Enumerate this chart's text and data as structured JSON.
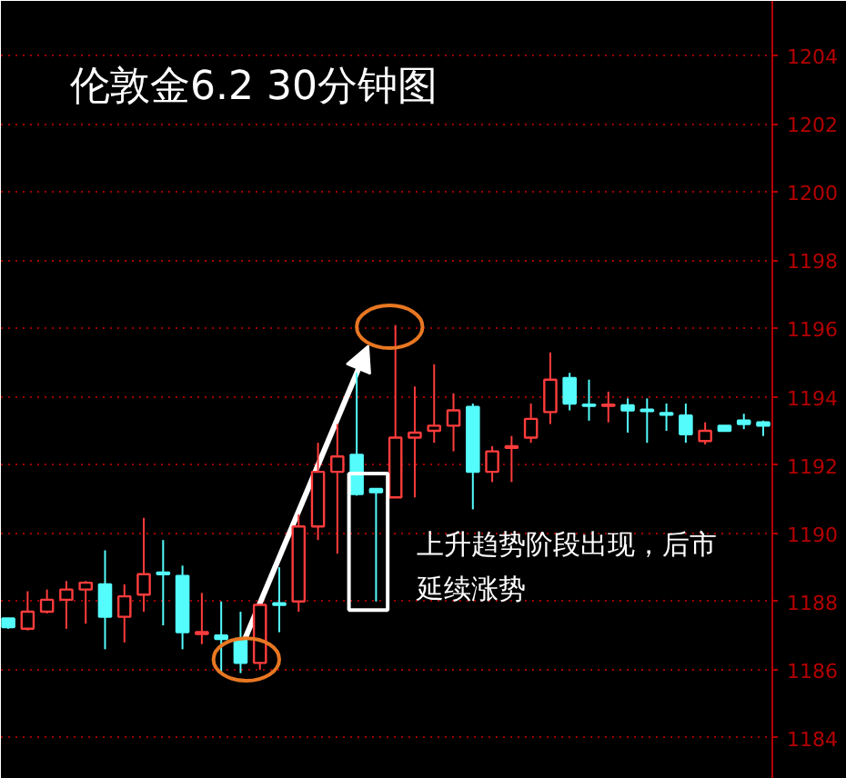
{
  "chart_data": {
    "type": "candlestick",
    "title": "伦敦金6.2 30分钟图",
    "categories": [
      null,
      null,
      null,
      null,
      null,
      null,
      null,
      null,
      null,
      null,
      null,
      null,
      null,
      null,
      null,
      null,
      null,
      null,
      null,
      null,
      null,
      null,
      null,
      null,
      null,
      null,
      null,
      null,
      null,
      null,
      null,
      null,
      null,
      null,
      null,
      null,
      null,
      null,
      null,
      null
    ],
    "ohlc": [
      [
        1187.5,
        1187.5,
        1187.2,
        1187.25
      ],
      [
        1187.2,
        1188.3,
        1187.15,
        1187.7
      ],
      [
        1187.7,
        1188.35,
        1187.65,
        1188.05
      ],
      [
        1188.05,
        1188.6,
        1187.2,
        1188.35
      ],
      [
        1188.35,
        1188.6,
        1187.35,
        1188.55
      ],
      [
        1188.5,
        1189.5,
        1186.6,
        1187.55
      ],
      [
        1187.55,
        1188.5,
        1186.8,
        1188.15
      ],
      [
        1188.2,
        1190.45,
        1187.7,
        1188.8
      ],
      [
        1188.85,
        1189.8,
        1187.3,
        1188.8
      ],
      [
        1188.75,
        1189.05,
        1186.6,
        1187.1
      ],
      [
        1187.05,
        1188.25,
        1186.75,
        1187.1
      ],
      [
        1187.0,
        1188.0,
        1185.9,
        1186.9
      ],
      [
        1186.9,
        1187.7,
        1185.9,
        1186.2
      ],
      [
        1186.2,
        1187.9,
        1186.0,
        1187.9
      ],
      [
        1187.95,
        1189.0,
        1187.1,
        1187.9
      ],
      [
        1188.0,
        1190.55,
        1187.7,
        1190.2
      ],
      [
        1190.2,
        1192.65,
        1189.8,
        1191.8
      ],
      [
        1191.8,
        1193.2,
        1189.4,
        1192.25
      ],
      [
        1192.3,
        1194.7,
        1191.1,
        1191.15
      ],
      [
        1191.3,
        1191.3,
        1188.0,
        1191.2
      ],
      [
        1191.05,
        1196.1,
        1191.05,
        1192.8
      ],
      [
        1192.8,
        1194.3,
        1191.05,
        1192.95
      ],
      [
        1193.0,
        1194.95,
        1192.65,
        1193.15
      ],
      [
        1193.15,
        1194.1,
        1192.4,
        1193.6
      ],
      [
        1193.7,
        1193.8,
        1190.7,
        1191.8
      ],
      [
        1191.8,
        1192.55,
        1191.5,
        1192.4
      ],
      [
        1192.5,
        1192.85,
        1191.5,
        1192.55
      ],
      [
        1192.8,
        1193.8,
        1192.65,
        1193.35
      ],
      [
        1193.55,
        1195.3,
        1193.2,
        1194.5
      ],
      [
        1194.55,
        1194.7,
        1193.6,
        1193.8
      ],
      [
        1193.77,
        1194.5,
        1193.3,
        1193.73
      ],
      [
        1193.73,
        1194.15,
        1193.25,
        1193.77
      ],
      [
        1193.75,
        1193.95,
        1192.95,
        1193.6
      ],
      [
        1193.62,
        1193.95,
        1192.65,
        1193.58
      ],
      [
        1193.52,
        1193.8,
        1193.0,
        1193.47
      ],
      [
        1193.45,
        1193.8,
        1192.65,
        1192.9
      ],
      [
        1192.7,
        1193.25,
        1192.6,
        1193.0
      ],
      [
        1193.15,
        1193.15,
        1193.0,
        1193.0
      ],
      [
        1193.3,
        1193.5,
        1193.05,
        1193.2
      ],
      [
        1193.25,
        1193.3,
        1192.85,
        1193.15
      ]
    ],
    "colors": [
      "#54fcfc",
      "#ff3c3c",
      "#ff3c3c",
      "#ff3c3c",
      "#ff3c3c",
      "#54fcfc",
      "#ff3c3c",
      "#ff3c3c",
      "#54fcfc",
      "#54fcfc",
      "#ff3c3c",
      "#54fcfc",
      "#54fcfc",
      "#ff3c3c",
      "#54fcfc",
      "#ff3c3c",
      "#ff3c3c",
      "#ff3c3c",
      "#54fcfc",
      "#54fcfc",
      "#ff3c3c",
      "#ff3c3c",
      "#ff3c3c",
      "#ff3c3c",
      "#54fcfc",
      "#ff3c3c",
      "#ff3c3c",
      "#ff3c3c",
      "#ff3c3c",
      "#54fcfc",
      "#54fcfc",
      "#ff3c3c",
      "#54fcfc",
      "#54fcfc",
      "#54fcfc",
      "#54fcfc",
      "#ff3c3c",
      "#54fcfc",
      "#54fcfc",
      "#54fcfc"
    ],
    "ylim": [
      1182.8,
      1205.6
    ],
    "yticks": [
      1184,
      1186,
      1188,
      1190,
      1192,
      1194,
      1196,
      1198,
      1200,
      1202,
      1204
    ],
    "grid": "y",
    "tick_labels": "y",
    "annotations": [
      "上升趋势阶段出现，后市延续涨势"
    ]
  }
}
